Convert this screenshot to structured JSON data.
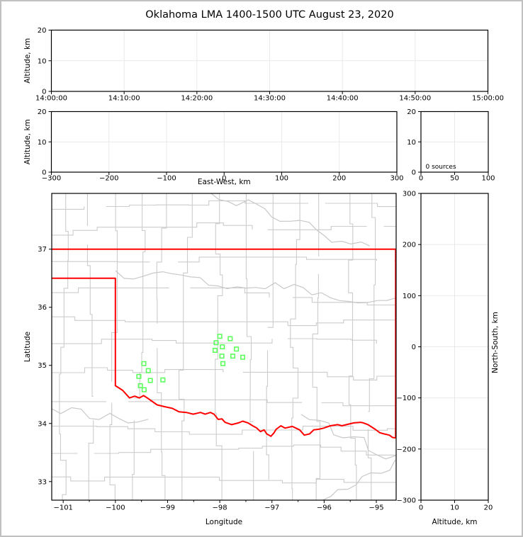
{
  "colors": {
    "frame_border": "#c0c0c0",
    "background": "#ffffff",
    "axis": "#000000",
    "grid": "#e9e9e9",
    "county_line": "#cccccc",
    "river_line": "#c8c8c8",
    "state_border": "#ff0000",
    "source_marker": "#55ff55"
  },
  "chart_data": {
    "type": "scatter",
    "title": "Oklahoma LMA 1400-1500 UTC August 23, 2020",
    "panels": [
      {
        "id": "time_height",
        "ylabel": "Altitude, km",
        "xtick_labels": [
          "14:00:00",
          "14:10:00",
          "14:20:00",
          "14:30:00",
          "14:40:00",
          "14:50:00",
          "15:00:00"
        ],
        "ylim": [
          0,
          20
        ],
        "yticks": [
          0,
          10,
          20
        ],
        "grid": true,
        "points": []
      },
      {
        "id": "ew_height",
        "xlabel": "East-West, km",
        "ylabel": "Altitude, km",
        "xlim": [
          -300,
          300
        ],
        "xticks": [
          -300,
          -200,
          -100,
          0,
          100,
          200,
          300
        ],
        "ylim": [
          0,
          20
        ],
        "yticks": [
          0,
          10,
          20
        ],
        "grid": true,
        "points": []
      },
      {
        "id": "alt_histogram",
        "xlim": [
          0,
          100
        ],
        "xticks": [
          0,
          50,
          100
        ],
        "ylim": [
          0,
          20
        ],
        "yticks": [
          0,
          10,
          20
        ],
        "annotation": "0 sources",
        "grid": true,
        "points": []
      },
      {
        "id": "plan_map",
        "xlabel": "Longitude",
        "ylabel": "Latitude",
        "xlim": [
          -101.22,
          -94.62
        ],
        "xticks": [
          -101,
          -100,
          -99,
          -98,
          -97,
          -96,
          -95
        ],
        "xminorticks": [
          -100.5,
          -99.5,
          -98.5,
          -97.5,
          -96.5,
          -95.5,
          -95.0
        ],
        "ylim": [
          32.68,
          37.96
        ],
        "yticks": [
          33,
          34,
          35,
          36,
          37
        ],
        "grid": false,
        "sources_lonlat": [
          [
            -99.455,
            35.03
          ],
          [
            -99.37,
            34.91
          ],
          [
            -99.55,
            34.81
          ],
          [
            -99.33,
            34.74
          ],
          [
            -99.09,
            34.75
          ],
          [
            -99.52,
            34.65
          ],
          [
            -99.45,
            34.58
          ],
          [
            -98.0,
            35.5
          ],
          [
            -97.8,
            35.46
          ],
          [
            -98.07,
            35.39
          ],
          [
            -97.95,
            35.32
          ],
          [
            -98.09,
            35.26
          ],
          [
            -97.68,
            35.28
          ],
          [
            -97.96,
            35.16
          ],
          [
            -97.75,
            35.16
          ],
          [
            -97.56,
            35.14
          ],
          [
            -97.94,
            35.03
          ]
        ],
        "state_border": {
          "north_lat": 37.0,
          "panhandle_south_lat": 36.5,
          "west_lon": -100.0,
          "east_lon": -94.63,
          "east_border_lat_range": [
            37.0,
            33.75
          ],
          "red_river_lonlat": [
            [
              -100.0,
              34.65
            ],
            [
              -99.86,
              34.57
            ],
            [
              -99.73,
              34.44
            ],
            [
              -99.63,
              34.47
            ],
            [
              -99.54,
              34.44
            ],
            [
              -99.46,
              34.48
            ],
            [
              -99.39,
              34.44
            ],
            [
              -99.2,
              34.32
            ],
            [
              -99.06,
              34.29
            ],
            [
              -98.91,
              34.26
            ],
            [
              -98.78,
              34.2
            ],
            [
              -98.64,
              34.19
            ],
            [
              -98.51,
              34.16
            ],
            [
              -98.37,
              34.19
            ],
            [
              -98.28,
              34.16
            ],
            [
              -98.18,
              34.19
            ],
            [
              -98.11,
              34.16
            ],
            [
              -98.03,
              34.07
            ],
            [
              -97.96,
              34.08
            ],
            [
              -97.9,
              34.02
            ],
            [
              -97.77,
              33.98
            ],
            [
              -97.64,
              34.01
            ],
            [
              -97.56,
              34.04
            ],
            [
              -97.46,
              34.01
            ],
            [
              -97.37,
              33.96
            ],
            [
              -97.29,
              33.92
            ],
            [
              -97.22,
              33.86
            ],
            [
              -97.15,
              33.89
            ],
            [
              -97.1,
              33.82
            ],
            [
              -97.02,
              33.78
            ],
            [
              -96.96,
              33.84
            ],
            [
              -96.92,
              33.9
            ],
            [
              -96.83,
              33.96
            ],
            [
              -96.75,
              33.92
            ],
            [
              -96.61,
              33.95
            ],
            [
              -96.47,
              33.89
            ],
            [
              -96.38,
              33.8
            ],
            [
              -96.28,
              33.82
            ],
            [
              -96.2,
              33.89
            ],
            [
              -96.11,
              33.9
            ],
            [
              -96.01,
              33.92
            ],
            [
              -95.88,
              33.96
            ],
            [
              -95.74,
              33.98
            ],
            [
              -95.66,
              33.96
            ],
            [
              -95.57,
              33.98
            ],
            [
              -95.43,
              34.01
            ],
            [
              -95.3,
              34.02
            ],
            [
              -95.25,
              34.01
            ],
            [
              -95.16,
              33.98
            ],
            [
              -95.02,
              33.9
            ],
            [
              -94.93,
              33.84
            ],
            [
              -94.85,
              33.82
            ],
            [
              -94.75,
              33.8
            ],
            [
              -94.69,
              33.76
            ],
            [
              -94.63,
              33.75
            ]
          ]
        }
      },
      {
        "id": "ns_alt",
        "xlabel": "Altitude, km",
        "ylabel_right": "North-South, km",
        "xlim": [
          0,
          20
        ],
        "xticks": [
          0,
          10,
          20
        ],
        "ylim": [
          -300,
          300
        ],
        "yticks": [
          300,
          200,
          100,
          0,
          -100,
          -200,
          -300
        ],
        "grid": true,
        "points": []
      }
    ]
  }
}
